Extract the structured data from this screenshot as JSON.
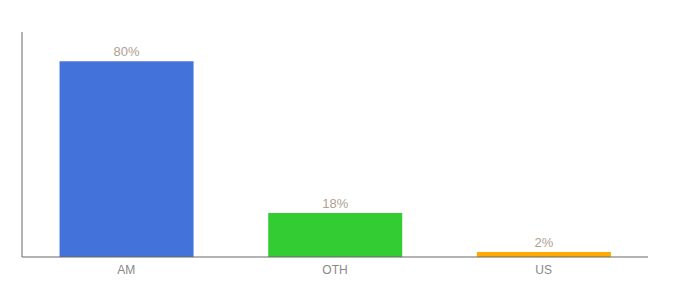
{
  "chart_data": {
    "type": "bar",
    "categories": [
      "AM",
      "OTH",
      "US"
    ],
    "values": [
      80,
      18,
      2
    ],
    "value_labels": [
      "80%",
      "18%",
      "2%"
    ],
    "colors": [
      "#4472db",
      "#33cc33",
      "#ffaa00"
    ],
    "ylim": [
      0,
      92
    ],
    "data_labels": true,
    "tick_labels": "x",
    "grid": false
  }
}
